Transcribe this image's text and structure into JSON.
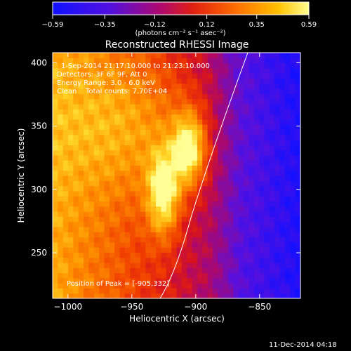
{
  "chart_data": {
    "type": "heatmap",
    "title": "Reconstructed RHESSI Image",
    "xlabel": "Heliocentric X (arcsec)",
    "ylabel": "Heliocentric Y (arcsec)",
    "xlim": [
      -1012,
      -818
    ],
    "ylim": [
      214,
      408
    ],
    "xticks": [
      -1000,
      -950,
      -900,
      -850
    ],
    "yticks": [
      250,
      300,
      350,
      400
    ],
    "colorbar": {
      "min": -0.59,
      "max": 0.59,
      "ticks": [
        -0.59,
        -0.35,
        -0.12,
        0.12,
        0.35,
        0.59
      ],
      "tick_labels": [
        "-0.59",
        "-0.35",
        "-0.12",
        "0.12",
        "0.35",
        "0.59"
      ],
      "label": "(photons cm⁻² s⁻¹ asec⁻²)",
      "colors": [
        "#1a10ff",
        "#7a00c0",
        "#c01030",
        "#ff5000",
        "#ffb000",
        "#ffff70"
      ]
    },
    "annotations": [
      "1-Sep-2014 21:17:10.000 to 21:23:10.000",
      "Detectors: 3F 6F 9F, Att 0",
      "Energy Range: 3.0 - 6.0 keV",
      "Clean    Total counts: 7.70E+04",
      "Position of Peak = [-905,332]"
    ],
    "peak": {
      "x": -905,
      "y": 332,
      "value": 0.59
    },
    "sources": [
      {
        "x": -925,
        "y": 297,
        "sx": 9,
        "sy": 24,
        "peak": 0.55
      },
      {
        "x": -905,
        "y": 332,
        "sx": 9,
        "sy": 20,
        "peak": 0.59
      },
      {
        "x": -945,
        "y": 350,
        "sx": 40,
        "sy": 40,
        "peak": 0.25
      }
    ],
    "grid": false
  },
  "footer": {
    "timestamp": "11-Dec-2014 04:18"
  }
}
